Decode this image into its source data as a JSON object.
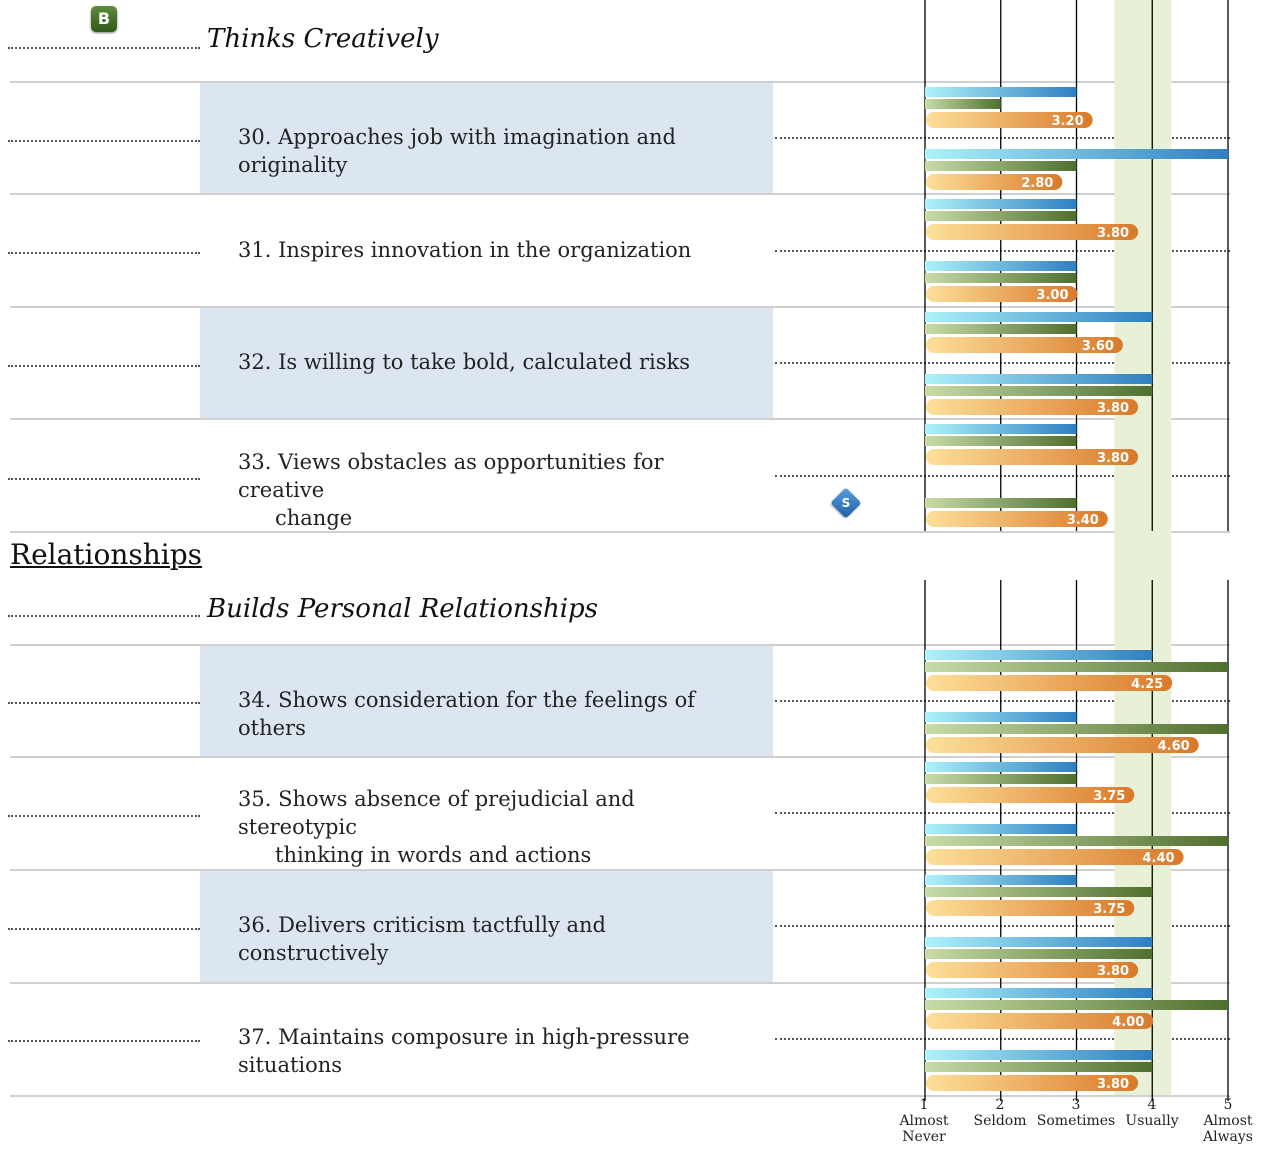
{
  "badges": {
    "top": "B",
    "marker": "S"
  },
  "sections": [
    {
      "title": "Relationships"
    }
  ],
  "subheadings": [
    {
      "title": "Thinks Creatively"
    },
    {
      "title": "Builds Personal Relationships"
    }
  ],
  "items": [
    {
      "num": "30.",
      "text": "Approaches job with imagination and originality"
    },
    {
      "num": "31.",
      "text": "Inspires innovation in the organization"
    },
    {
      "num": "32.",
      "text": "Is willing to take bold, calculated risks"
    },
    {
      "num": "33.",
      "text": "Views obstacles as opportunities for creative",
      "text2": "change"
    },
    {
      "num": "34.",
      "text": "Shows consideration for the feelings of others"
    },
    {
      "num": "35.",
      "text": "Shows absence of prejudicial and stereotypic",
      "text2": "thinking in words and actions"
    },
    {
      "num": "36.",
      "text": "Delivers criticism tactfully and constructively"
    },
    {
      "num": "37.",
      "text": "Maintains composure in high-pressure situations"
    }
  ],
  "chart_data": {
    "type": "bar",
    "orientation": "horizontal",
    "x_range": [
      1,
      5
    ],
    "x_ticks": [
      {
        "value": 1,
        "label": "1",
        "name": "Almost Never"
      },
      {
        "value": 2,
        "label": "2",
        "name": "Seldom"
      },
      {
        "value": 3,
        "label": "3",
        "name": "Sometimes"
      },
      {
        "value": 4,
        "label": "4",
        "name": "Usually"
      },
      {
        "value": 5,
        "label": "5",
        "name": "Almost Always"
      }
    ],
    "norm_band": [
      3.5,
      4.25
    ],
    "colors": {
      "blue": "#2f7fc1",
      "green": "#4f6f2f",
      "orange": "#d9792a",
      "band": "#e8f0d8"
    },
    "items": [
      {
        "item": "30",
        "groups": [
          {
            "blue": 3,
            "green": 2,
            "orange": 3.2,
            "label": "3.20"
          },
          {
            "blue": 5,
            "green": 3,
            "orange": 2.8,
            "label": "2.80"
          }
        ]
      },
      {
        "item": "31",
        "groups": [
          {
            "blue": 3,
            "green": 3,
            "orange": 3.8,
            "label": "3.80"
          },
          {
            "blue": 3,
            "green": 3,
            "orange": 3.0,
            "label": "3.00"
          }
        ]
      },
      {
        "item": "32",
        "groups": [
          {
            "blue": 4,
            "green": 3,
            "orange": 3.6,
            "label": "3.60"
          },
          {
            "blue": 4,
            "green": 4,
            "orange": 3.8,
            "label": "3.80"
          }
        ]
      },
      {
        "item": "33",
        "groups": [
          {
            "blue": 3,
            "green": 3,
            "orange": 3.8,
            "label": "3.80"
          },
          {
            "blue": null,
            "green": 3,
            "orange": 3.4,
            "label": "3.40"
          }
        ]
      },
      {
        "item": "34",
        "groups": [
          {
            "blue": 4,
            "green": 5,
            "orange": 4.25,
            "label": "4.25"
          },
          {
            "blue": 3,
            "green": 5,
            "orange": 4.6,
            "label": "4.60"
          }
        ]
      },
      {
        "item": "35",
        "groups": [
          {
            "blue": 3,
            "green": 3,
            "orange": 3.75,
            "label": "3.75"
          },
          {
            "blue": 3,
            "green": 5,
            "orange": 4.4,
            "label": "4.40"
          }
        ]
      },
      {
        "item": "36",
        "groups": [
          {
            "blue": 3,
            "green": 4,
            "orange": 3.75,
            "label": "3.75"
          },
          {
            "blue": 4,
            "green": 4,
            "orange": 3.8,
            "label": "3.80"
          }
        ]
      },
      {
        "item": "37",
        "groups": [
          {
            "blue": 4,
            "green": 5,
            "orange": 4.0,
            "label": "4.00"
          },
          {
            "blue": 4,
            "green": 4,
            "orange": 3.8,
            "label": "3.80"
          }
        ]
      }
    ]
  }
}
